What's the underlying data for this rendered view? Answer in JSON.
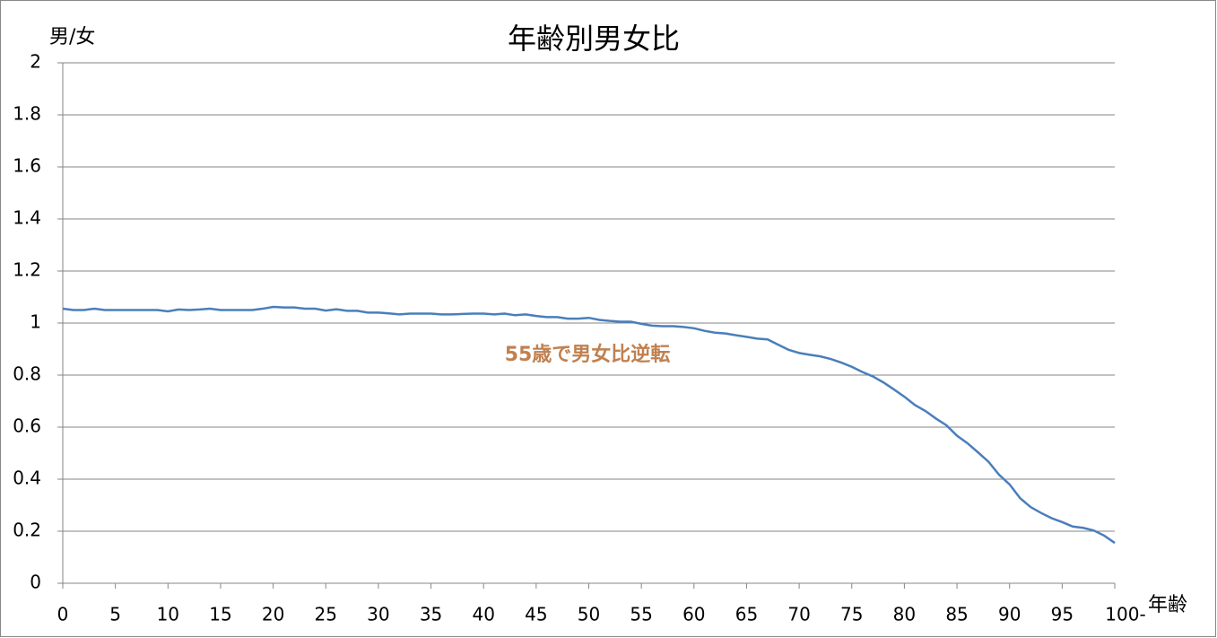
{
  "chart_data": {
    "type": "line",
    "title": "年齢別男女比",
    "y_label": "男/女",
    "x_label": "年齢",
    "annotation": "55歳で男女比逆転",
    "annotation_color": "#c0804f",
    "x": [
      0,
      1,
      2,
      3,
      4,
      5,
      6,
      7,
      8,
      9,
      10,
      11,
      12,
      13,
      14,
      15,
      16,
      17,
      18,
      19,
      20,
      21,
      22,
      23,
      24,
      25,
      26,
      27,
      28,
      29,
      30,
      31,
      32,
      33,
      34,
      35,
      36,
      37,
      38,
      39,
      40,
      41,
      42,
      43,
      44,
      45,
      46,
      47,
      48,
      49,
      50,
      51,
      52,
      53,
      54,
      55,
      56,
      57,
      58,
      59,
      60,
      61,
      62,
      63,
      64,
      65,
      66,
      67,
      68,
      69,
      70,
      71,
      72,
      73,
      74,
      75,
      76,
      77,
      78,
      79,
      80,
      81,
      82,
      83,
      84,
      85,
      86,
      87,
      88,
      89,
      90,
      91,
      92,
      93,
      94,
      95,
      96,
      97,
      98,
      99,
      100
    ],
    "series": [
      {
        "color": "#4a7ebb",
        "values": [
          1.055,
          1.05,
          1.05,
          1.055,
          1.05,
          1.05,
          1.05,
          1.05,
          1.05,
          1.05,
          1.045,
          1.052,
          1.05,
          1.052,
          1.055,
          1.05,
          1.05,
          1.05,
          1.05,
          1.055,
          1.062,
          1.06,
          1.06,
          1.055,
          1.055,
          1.048,
          1.053,
          1.047,
          1.047,
          1.04,
          1.04,
          1.037,
          1.033,
          1.036,
          1.036,
          1.036,
          1.033,
          1.033,
          1.035,
          1.036,
          1.036,
          1.033,
          1.036,
          1.03,
          1.033,
          1.027,
          1.023,
          1.023,
          1.017,
          1.017,
          1.02,
          1.012,
          1.008,
          1.005,
          1.005,
          0.997,
          0.99,
          0.988,
          0.988,
          0.985,
          0.98,
          0.97,
          0.963,
          0.96,
          0.953,
          0.947,
          0.94,
          0.937,
          0.917,
          0.897,
          0.885,
          0.878,
          0.872,
          0.862,
          0.848,
          0.832,
          0.812,
          0.795,
          0.772,
          0.745,
          0.717,
          0.685,
          0.662,
          0.633,
          0.607,
          0.567,
          0.538,
          0.503,
          0.467,
          0.417,
          0.38,
          0.327,
          0.293,
          0.27,
          0.25,
          0.235,
          0.218,
          0.213,
          0.203,
          0.183,
          0.155
        ]
      }
    ],
    "xlim": [
      0,
      100
    ],
    "xticks": [
      0,
      5,
      10,
      15,
      20,
      25,
      30,
      35,
      40,
      45,
      50,
      55,
      60,
      65,
      70,
      75,
      80,
      85,
      90,
      95,
      {
        "value": 100,
        "label": "100-"
      }
    ],
    "ylim": [
      0,
      2
    ],
    "yticks": [
      0,
      0.2,
      0.4,
      0.6,
      0.8,
      1,
      1.2,
      1.4,
      1.6,
      1.8,
      2
    ],
    "grid": true
  }
}
